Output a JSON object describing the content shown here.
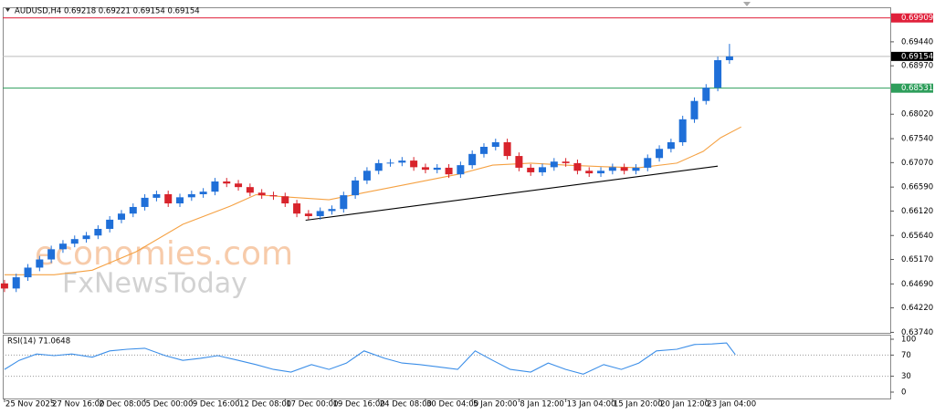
{
  "chart_data": [
    {
      "type": "candlestick",
      "title": "AUDUSD,H4  0.69218 0.69221 0.69154 0.69154",
      "watermark": [
        "economies.com",
        "FxNewsToday"
      ],
      "x": [
        0,
        4,
        8,
        12,
        16,
        20,
        24,
        28,
        32,
        36,
        40,
        44,
        48,
        52,
        56,
        60,
        64,
        68,
        72,
        76,
        80,
        84,
        88,
        92,
        96,
        100,
        104,
        108,
        112,
        116,
        120,
        124,
        128,
        132,
        136,
        140,
        144,
        148,
        152,
        156,
        160,
        164,
        168,
        172,
        176,
        180,
        184,
        188,
        192,
        196,
        200,
        204,
        208,
        212,
        216,
        220,
        224,
        228,
        232,
        236,
        240,
        244,
        248
      ],
      "open": [
        0.647,
        0.646,
        0.6482,
        0.6501,
        0.6517,
        0.6537,
        0.6548,
        0.6557,
        0.6564,
        0.6577,
        0.6595,
        0.6607,
        0.662,
        0.6638,
        0.6645,
        0.6627,
        0.6639,
        0.6645,
        0.665,
        0.667,
        0.6666,
        0.6659,
        0.6648,
        0.6643,
        0.6641,
        0.6627,
        0.6607,
        0.6602,
        0.6612,
        0.6616,
        0.6643,
        0.6672,
        0.6691,
        0.6706,
        0.6707,
        0.6711,
        0.6698,
        0.6693,
        0.6697,
        0.6684,
        0.6702,
        0.6724,
        0.6738,
        0.6747,
        0.672,
        0.6697,
        0.6688,
        0.6698,
        0.6709,
        0.6706,
        0.6691,
        0.6686,
        0.6691,
        0.6698,
        0.6691,
        0.6697,
        0.6716,
        0.6734,
        0.6747,
        0.6792,
        0.6828,
        0.6854,
        0.6908
      ],
      "high": [
        0.6477,
        0.6489,
        0.6508,
        0.6524,
        0.6544,
        0.6555,
        0.6564,
        0.6571,
        0.6584,
        0.6602,
        0.6614,
        0.6627,
        0.6645,
        0.6652,
        0.6652,
        0.6646,
        0.6652,
        0.6657,
        0.6677,
        0.6677,
        0.6673,
        0.6666,
        0.6655,
        0.665,
        0.6648,
        0.6634,
        0.6614,
        0.6619,
        0.6623,
        0.665,
        0.6679,
        0.6698,
        0.6713,
        0.6714,
        0.6718,
        0.6718,
        0.6705,
        0.6704,
        0.6704,
        0.6709,
        0.6731,
        0.6745,
        0.6754,
        0.6754,
        0.6727,
        0.6704,
        0.6705,
        0.6716,
        0.6716,
        0.6713,
        0.6698,
        0.6698,
        0.6705,
        0.6705,
        0.6704,
        0.6723,
        0.6741,
        0.6754,
        0.6799,
        0.6835,
        0.6861,
        0.6915,
        0.694
      ],
      "low": [
        0.6453,
        0.6453,
        0.6475,
        0.6494,
        0.651,
        0.653,
        0.6541,
        0.655,
        0.6557,
        0.657,
        0.6588,
        0.66,
        0.6613,
        0.6631,
        0.662,
        0.662,
        0.6632,
        0.6638,
        0.6643,
        0.6659,
        0.6652,
        0.6641,
        0.6636,
        0.6634,
        0.662,
        0.66,
        0.6595,
        0.6595,
        0.6605,
        0.6609,
        0.6636,
        0.6665,
        0.6684,
        0.6699,
        0.67,
        0.6691,
        0.6686,
        0.6686,
        0.6677,
        0.6677,
        0.6695,
        0.6717,
        0.6731,
        0.6713,
        0.669,
        0.6681,
        0.6681,
        0.6691,
        0.6699,
        0.6684,
        0.6679,
        0.6679,
        0.6684,
        0.6684,
        0.6684,
        0.669,
        0.6709,
        0.6727,
        0.674,
        0.6785,
        0.6821,
        0.6847,
        0.6901
      ],
      "close": [
        0.646,
        0.6482,
        0.6501,
        0.6517,
        0.6537,
        0.6548,
        0.6557,
        0.6564,
        0.6577,
        0.6595,
        0.6607,
        0.662,
        0.6638,
        0.6645,
        0.6627,
        0.6639,
        0.6645,
        0.665,
        0.667,
        0.6666,
        0.6659,
        0.6648,
        0.6643,
        0.6641,
        0.6627,
        0.6607,
        0.6602,
        0.6612,
        0.6616,
        0.6643,
        0.6672,
        0.6691,
        0.6706,
        0.6707,
        0.6711,
        0.6698,
        0.6693,
        0.6697,
        0.6684,
        0.6702,
        0.6724,
        0.6738,
        0.6747,
        0.672,
        0.6697,
        0.6688,
        0.6698,
        0.6709,
        0.6706,
        0.6691,
        0.6686,
        0.6691,
        0.6698,
        0.6691,
        0.6697,
        0.6716,
        0.6734,
        0.6747,
        0.6792,
        0.6828,
        0.6854,
        0.6908,
        0.69154
      ],
      "up_color": "#1f6fd8",
      "down_color": "#d8232b",
      "moving_average": {
        "color": "#f5a142",
        "x": [
          0,
          17,
          30,
          45,
          61,
          77,
          86,
          98,
          111,
          123,
          139,
          155,
          167,
          180,
          192,
          205,
          217,
          230,
          239,
          245,
          252
        ],
        "values": [
          0.6487,
          0.6487,
          0.6496,
          0.6532,
          0.6586,
          0.6621,
          0.6644,
          0.6639,
          0.6634,
          0.6648,
          0.6666,
          0.6684,
          0.6702,
          0.6706,
          0.6702,
          0.6699,
          0.6697,
          0.6706,
          0.6729,
          0.6756,
          0.6777
        ]
      },
      "trendline": {
        "color": "#000000",
        "x": [
          103,
          244
        ],
        "values": [
          0.6594,
          0.67
        ]
      },
      "hlines": [
        {
          "value": 0.69909,
          "label": "0.69909",
          "color": "#e0203a"
        },
        {
          "value": 0.69154,
          "label": "0.69154",
          "color": "#000000"
        },
        {
          "value": 0.68531,
          "label": "0.68531",
          "color": "#2e9e5b"
        }
      ],
      "xlim": [
        -0.6,
        303
      ],
      "xticks": [
        {
          "value": 0,
          "label": "25 Nov 2025"
        },
        {
          "value": 16,
          "label": "27 Nov 16:00"
        },
        {
          "value": 32,
          "label": "2 Dec 08:00"
        },
        {
          "value": 48,
          "label": "5 Dec 00:00"
        },
        {
          "value": 64,
          "label": "9 Dec 16:00"
        },
        {
          "value": 80,
          "label": "12 Dec 08:00"
        },
        {
          "value": 96,
          "label": "17 Dec 00:00"
        },
        {
          "value": 112,
          "label": "19 Dec 16:00"
        },
        {
          "value": 128,
          "label": "24 Dec 08:00"
        },
        {
          "value": 144,
          "label": "30 Dec 04:00"
        },
        {
          "value": 160,
          "label": "5 Jan 20:00"
        },
        {
          "value": 176,
          "label": "8 Jan 12:00"
        },
        {
          "value": 192,
          "label": "13 Jan 04:00"
        },
        {
          "value": 208,
          "label": "15 Jan 20:00"
        },
        {
          "value": 224,
          "label": "20 Jan 12:00"
        },
        {
          "value": 240,
          "label": "23 Jan 04:00"
        }
      ],
      "ylim": [
        0.6373,
        0.701
      ],
      "yticks": [
        {
          "value": 0.6944,
          "label": "0.69440"
        },
        {
          "value": 0.6897,
          "label": "0.68970"
        },
        {
          "value": 0.6802,
          "label": "0.68020"
        },
        {
          "value": 0.6754,
          "label": "0.67540"
        },
        {
          "value": 0.6707,
          "label": "0.67070"
        },
        {
          "value": 0.6659,
          "label": "0.66590"
        },
        {
          "value": 0.6612,
          "label": "0.66120"
        },
        {
          "value": 0.6564,
          "label": "0.65640"
        },
        {
          "value": 0.6517,
          "label": "0.65170"
        },
        {
          "value": 0.6469,
          "label": "0.64690"
        },
        {
          "value": 0.6422,
          "label": "0.64220"
        },
        {
          "value": 0.6374,
          "label": "0.63740"
        }
      ]
    },
    {
      "type": "line",
      "title": "RSI(14) 71.0648",
      "x": [
        0,
        5,
        11,
        17,
        23,
        30,
        36,
        42,
        48,
        55,
        61,
        67,
        73,
        80,
        86,
        92,
        98,
        105,
        111,
        117,
        123,
        130,
        136,
        142,
        148,
        155,
        161,
        167,
        173,
        180,
        186,
        192,
        198,
        205,
        211,
        217,
        223,
        230,
        236,
        242,
        247,
        250
      ],
      "values": [
        43,
        60,
        72,
        69,
        72,
        66,
        78,
        81,
        83,
        69,
        60,
        64,
        69,
        60,
        52,
        43,
        38,
        52,
        43,
        55,
        78,
        64,
        55,
        52,
        48,
        43,
        78,
        60,
        43,
        38,
        55,
        43,
        34,
        52,
        43,
        55,
        78,
        81,
        90,
        91,
        93,
        71.0648
      ],
      "color": "#3b8ee8",
      "levels": [
        70,
        30
      ],
      "xlim": [
        -0.6,
        303
      ],
      "ylim": [
        0,
        100
      ],
      "yticks": [
        100,
        70,
        30,
        0
      ]
    }
  ]
}
